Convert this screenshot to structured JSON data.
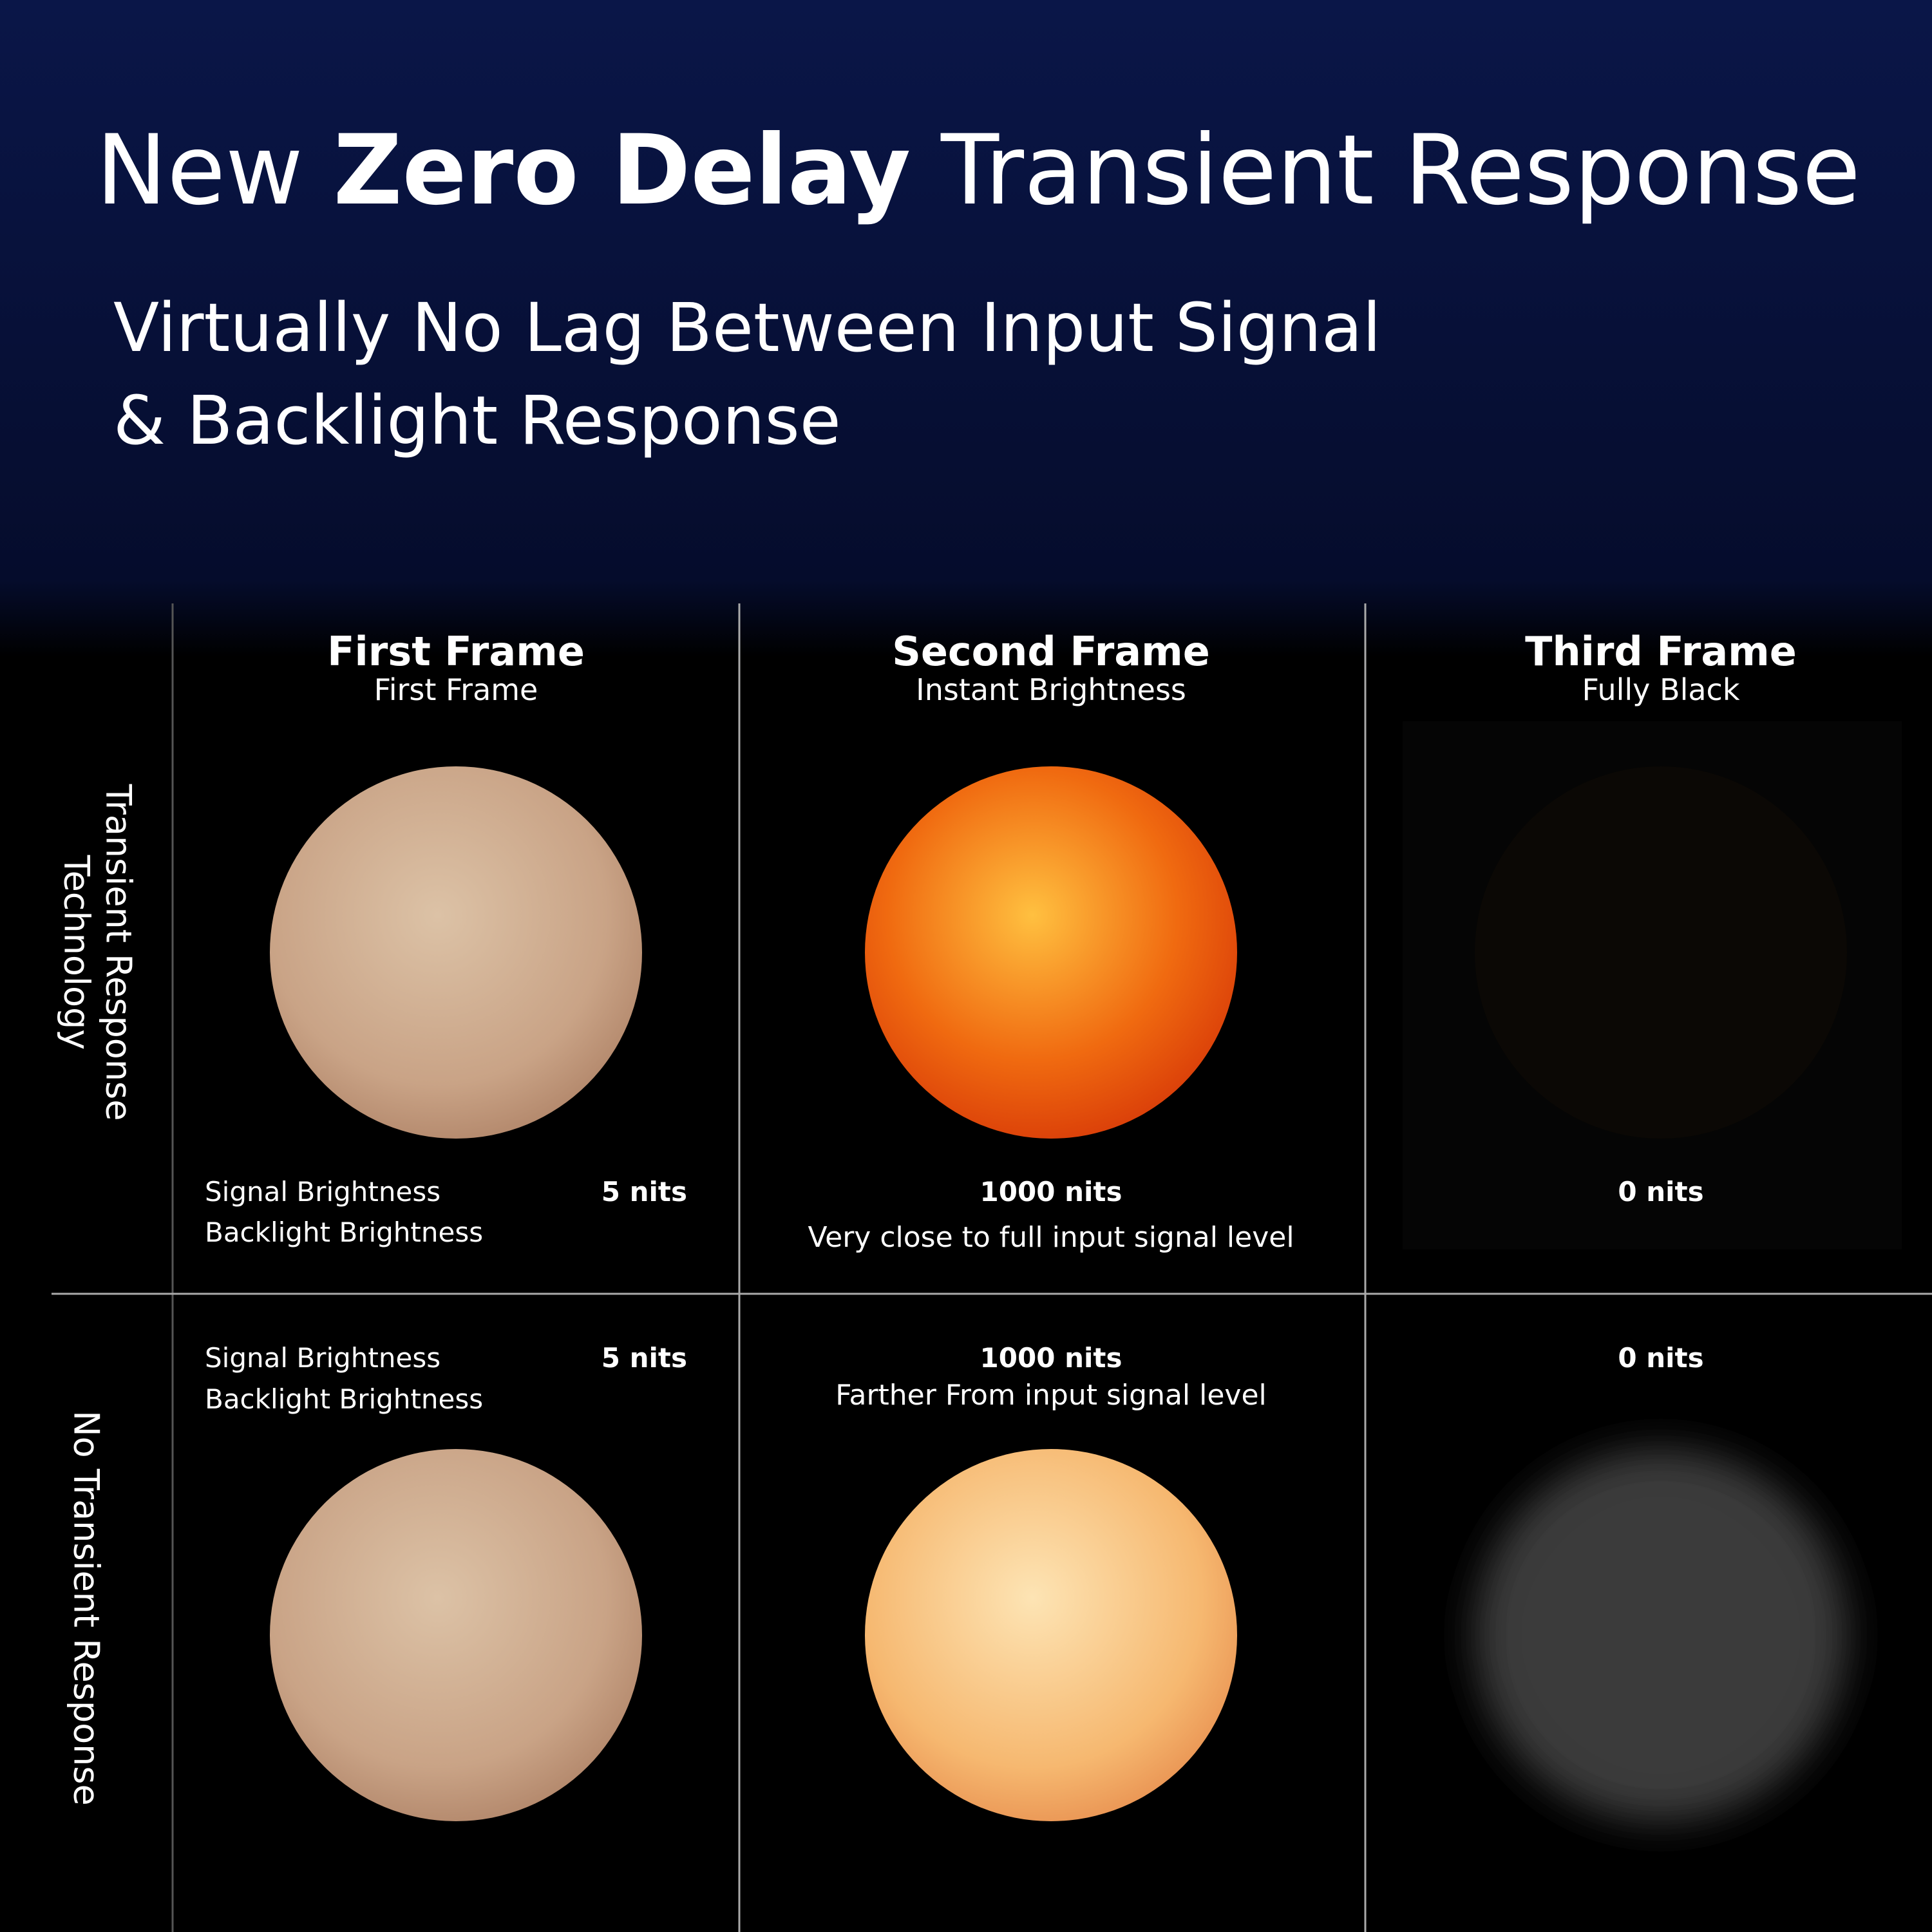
{
  "header": {
    "title": {
      "before": "New",
      "bold": "Zero Delay",
      "after": "Transient Response"
    },
    "subtitle": [
      "Virtually No Lag Between Input Signal",
      "& Backlight Response"
    ]
  },
  "columns": [
    {
      "title": "First Frame",
      "subtitle": "First Frame"
    },
    {
      "title": "Second Frame",
      "subtitle": "Instant Brightness"
    },
    {
      "title": "Third Frame",
      "subtitle": "Fully Black"
    }
  ],
  "rows": [
    {
      "label": [
        "Transient Response",
        "Technology"
      ],
      "cells": [
        {
          "labels": [
            "Signal Brightness",
            "Backlight Brightness"
          ],
          "value": "5 nits"
        },
        {
          "value": "1000 nits",
          "note": "Very close to full input signal level"
        },
        {
          "value": "0 nits"
        }
      ]
    },
    {
      "label": [
        "No Transient Response"
      ],
      "cells": [
        {
          "labels": [
            "Signal Brightness",
            "Backlight Brightness"
          ],
          "value": "5 nits"
        },
        {
          "value": "1000 nits",
          "note": "Farther From input signal level"
        },
        {
          "value": "0 nits"
        }
      ]
    }
  ]
}
